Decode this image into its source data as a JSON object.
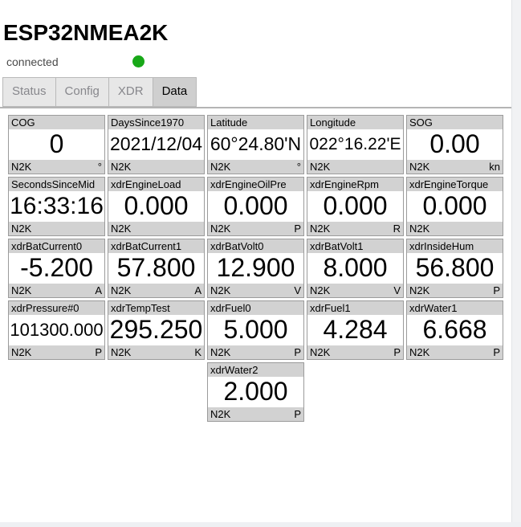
{
  "header": {
    "title": "ESP32NMEA2K",
    "connection_status": "connected"
  },
  "colors": {
    "status_ok": "#18a818",
    "card_header_bg": "#d2d2d2",
    "tab_active_bg": "#cfcfcf"
  },
  "tabs": {
    "items": [
      {
        "label": "Status",
        "active": false
      },
      {
        "label": "Config",
        "active": false
      },
      {
        "label": "XDR",
        "active": false
      },
      {
        "label": "Data",
        "active": true
      }
    ]
  },
  "cards": [
    {
      "label": "COG",
      "value": "0",
      "source": "N2K",
      "unit": "°"
    },
    {
      "label": "DaysSince1970",
      "value": "2021/12/04",
      "source": "N2K",
      "unit": ""
    },
    {
      "label": "Latitude",
      "value": "60°24.80'N",
      "source": "N2K",
      "unit": "°"
    },
    {
      "label": "Longitude",
      "value": "022°16.22'E",
      "source": "N2K",
      "unit": ""
    },
    {
      "label": "SOG",
      "value": "0.00",
      "source": "N2K",
      "unit": "kn"
    },
    {
      "label": "SecondsSinceMid",
      "value": "16:33:16",
      "source": "N2K",
      "unit": ""
    },
    {
      "label": "xdrEngineLoad",
      "value": "0.000",
      "source": "N2K",
      "unit": ""
    },
    {
      "label": "xdrEngineOilPre",
      "value": "0.000",
      "source": "N2K",
      "unit": "P"
    },
    {
      "label": "xdrEngineRpm",
      "value": "0.000",
      "source": "N2K",
      "unit": "R"
    },
    {
      "label": "xdrEngineTorque",
      "value": "0.000",
      "source": "N2K",
      "unit": ""
    },
    {
      "label": "xdrBatCurrent0",
      "value": "-5.200",
      "source": "N2K",
      "unit": "A"
    },
    {
      "label": "xdrBatCurrent1",
      "value": "57.800",
      "source": "N2K",
      "unit": "A"
    },
    {
      "label": "xdrBatVolt0",
      "value": "12.900",
      "source": "N2K",
      "unit": "V"
    },
    {
      "label": "xdrBatVolt1",
      "value": "8.000",
      "source": "N2K",
      "unit": "V"
    },
    {
      "label": "xdrInsideHum",
      "value": "56.800",
      "source": "N2K",
      "unit": "P"
    },
    {
      "label": "xdrPressure#0",
      "value": "101300.000",
      "source": "N2K",
      "unit": "P"
    },
    {
      "label": "xdrTempTest",
      "value": "295.250",
      "source": "N2K",
      "unit": "K"
    },
    {
      "label": "xdrFuel0",
      "value": "5.000",
      "source": "N2K",
      "unit": "P"
    },
    {
      "label": "xdrFuel1",
      "value": "4.284",
      "source": "N2K",
      "unit": "P"
    },
    {
      "label": "xdrWater1",
      "value": "6.668",
      "source": "N2K",
      "unit": "P"
    },
    {
      "label": "xdrWater2",
      "value": "2.000",
      "source": "N2K",
      "unit": "P",
      "col": 3
    }
  ]
}
